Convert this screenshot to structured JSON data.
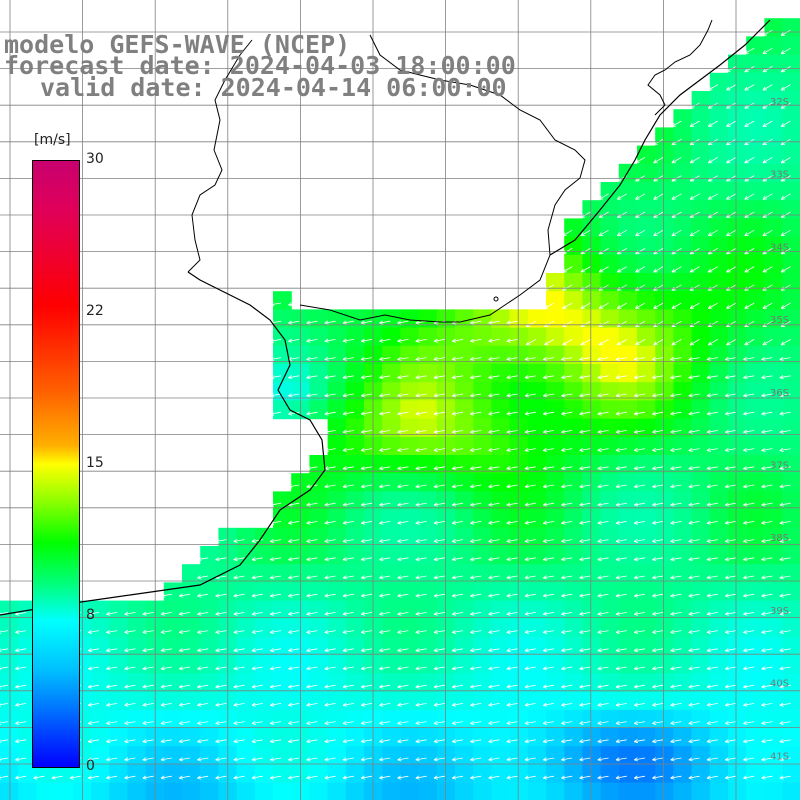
{
  "header": {
    "title": "modelo GEFS-WAVE (NCEP)",
    "forecast_date": "forecast date: 2024-04-03 18:00:00",
    "valid_date": "valid date: 2024-04-14 06:00:00"
  },
  "colorbar": {
    "unit": "[m/s]",
    "labels": [
      "30",
      "22",
      "15",
      "8",
      "0"
    ],
    "min": 0,
    "max": 30,
    "colors": [
      "#c8006e",
      "#ff0000",
      "#ff6000",
      "#ffff00",
      "#00ff00",
      "#00ffff",
      "#0060ff",
      "#0000ff"
    ]
  },
  "lat_labels": [
    "32S",
    "33S",
    "34S",
    "35S",
    "36S",
    "37S",
    "38S",
    "39S",
    "40S",
    "41S"
  ],
  "colors": {
    "land": "#ffffff",
    "coastline": "#000000",
    "grid": "#808080",
    "arrows": "#ffffff",
    "title_text": "#808080"
  }
}
